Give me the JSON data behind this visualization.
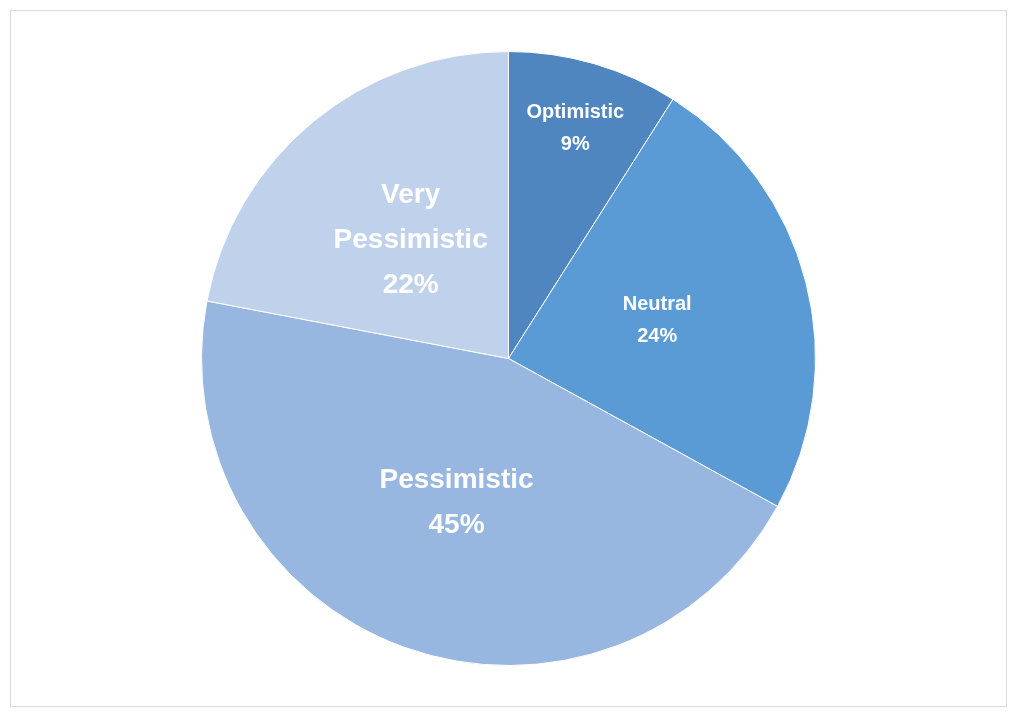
{
  "chart_data": {
    "type": "pie",
    "categories": [
      "Optimistic",
      "Neutral",
      "Pessimistic",
      "Very Pessimistic"
    ],
    "values": [
      9,
      24,
      45,
      22
    ],
    "value_labels": [
      "9%",
      "24%",
      "45%",
      "22%"
    ],
    "colors": [
      "#4f86c0",
      "#5b9bd5",
      "#97b7e0",
      "#c0d2eb"
    ]
  }
}
